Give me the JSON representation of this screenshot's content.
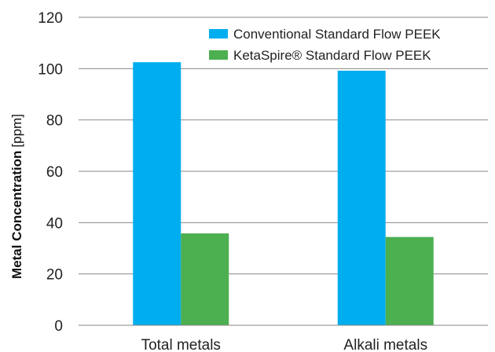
{
  "chart_data": {
    "type": "bar",
    "categories": [
      "Total metals",
      "Alkali metals"
    ],
    "series": [
      {
        "name": "Conventional Standard Flow PEEK",
        "values": [
          102.5,
          99.2
        ],
        "color": "#00aeef"
      },
      {
        "name": "KetaSpire® Standard Flow PEEK",
        "values": [
          35.8,
          34.4
        ],
        "color": "#4caf50"
      }
    ],
    "title": "",
    "xlabel": "",
    "ylabel": {
      "bold": "Metal Concentration",
      "unit": "[ppm]"
    },
    "ylim": [
      0,
      120
    ],
    "yticks": [
      0,
      20,
      40,
      60,
      80,
      100,
      120
    ],
    "grid": true,
    "legend_position": "top-right"
  }
}
